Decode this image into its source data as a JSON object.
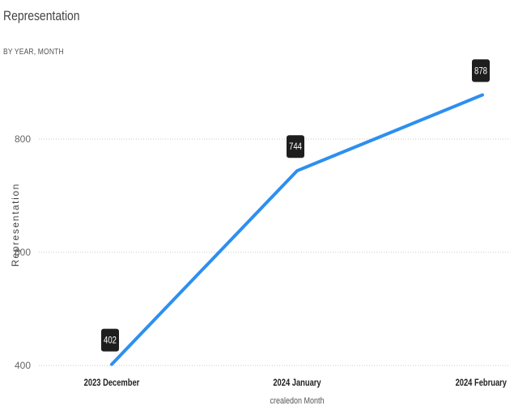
{
  "chart_data": {
    "type": "line",
    "title": "Representation",
    "subtitle": "BY YEAR, MONTH",
    "xlabel": "crealedon Month",
    "ylabel": "Representation",
    "categories": [
      "2023 December",
      "2024 January",
      "2024 February"
    ],
    "series": [
      {
        "values": [
          402,
          744,
          878
        ]
      }
    ],
    "data_labels": [
      "402",
      "744",
      "878"
    ],
    "y_ticks": [
      400,
      600,
      800
    ],
    "ylim": [
      400,
      900
    ],
    "grid": true,
    "legend": "none",
    "line_color": "#2d8ff0"
  }
}
